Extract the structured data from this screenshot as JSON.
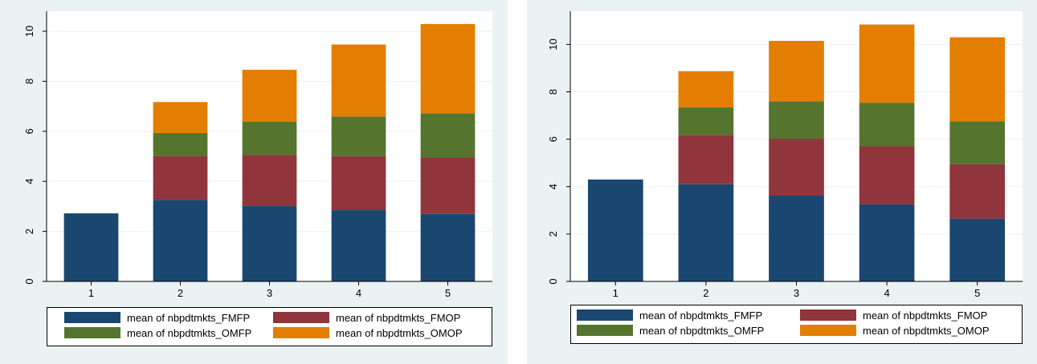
{
  "colors": {
    "FMFP": "#1a476f",
    "FMOP": "#90353b",
    "OMFP": "#55752f",
    "OMOP": "#e37e00",
    "panel_bg": "#eaf2f3",
    "plot_bg": "#ffffff",
    "grid": "#eaf2f3"
  },
  "chart_data": [
    {
      "type": "bar",
      "stacked": true,
      "categories": [
        "1",
        "2",
        "3",
        "4",
        "5"
      ],
      "ylim": [
        0,
        10.8
      ],
      "yticks": [
        0,
        2,
        4,
        6,
        8,
        10
      ],
      "grid": true,
      "legend_position": "bottom",
      "series": [
        {
          "name": "mean of nbpdtmkts_FMFP",
          "key": "FMFP",
          "values": [
            2.72,
            3.26,
            3.01,
            2.85,
            2.7
          ]
        },
        {
          "name": "mean of nbpdtmkts_FMOP",
          "key": "FMOP",
          "values": [
            0,
            1.76,
            2.05,
            2.16,
            2.25
          ]
        },
        {
          "name": "mean of nbpdtmkts_OMFP",
          "key": "OMFP",
          "values": [
            0,
            0.91,
            1.33,
            1.58,
            1.77
          ]
        },
        {
          "name": "mean of nbpdtmkts_OMOP",
          "key": "OMOP",
          "values": [
            0,
            1.24,
            2.07,
            2.88,
            3.57
          ]
        }
      ]
    },
    {
      "type": "bar",
      "stacked": true,
      "categories": [
        "1",
        "2",
        "3",
        "4",
        "5"
      ],
      "ylim": [
        0,
        11.4
      ],
      "yticks": [
        0,
        2,
        4,
        6,
        8,
        10
      ],
      "grid": true,
      "legend_position": "bottom",
      "series": [
        {
          "name": "mean of nbpdtmkts_FMFP",
          "key": "FMFP",
          "values": [
            4.3,
            4.1,
            3.62,
            3.25,
            2.65
          ]
        },
        {
          "name": "mean of nbpdtmkts_FMOP",
          "key": "FMOP",
          "values": [
            0,
            2.08,
            2.4,
            2.45,
            2.3
          ]
        },
        {
          "name": "mean of nbpdtmkts_OMFP",
          "key": "OMFP",
          "values": [
            0,
            1.17,
            1.58,
            1.84,
            1.8
          ]
        },
        {
          "name": "mean of nbpdtmkts_OMOP",
          "key": "OMOP",
          "values": [
            0,
            1.52,
            2.55,
            3.3,
            3.55
          ]
        }
      ]
    }
  ]
}
